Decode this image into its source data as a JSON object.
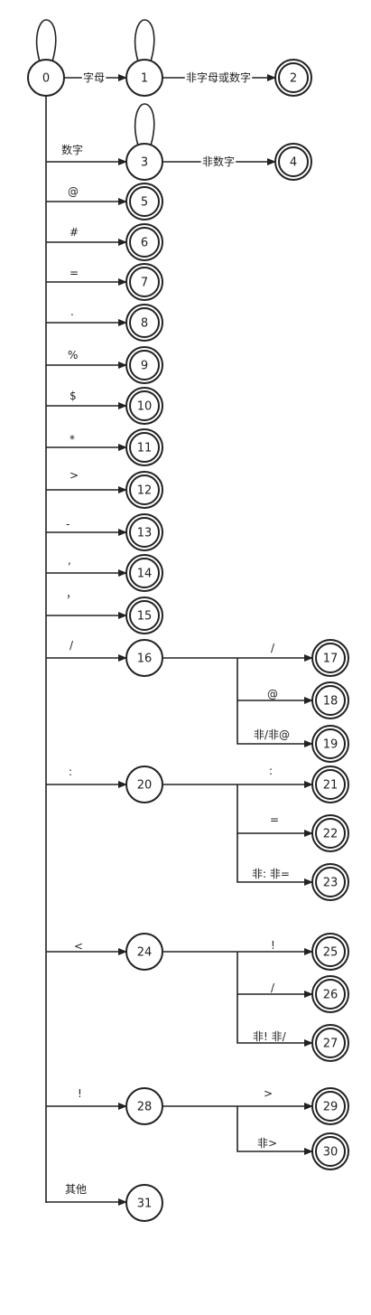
{
  "diagram": {
    "states": [
      {
        "id": "0",
        "label": "0",
        "accepting": false
      },
      {
        "id": "1",
        "label": "1",
        "accepting": false
      },
      {
        "id": "2",
        "label": "2",
        "accepting": true
      },
      {
        "id": "3",
        "label": "3",
        "accepting": false
      },
      {
        "id": "4",
        "label": "4",
        "accepting": true
      },
      {
        "id": "5",
        "label": "5",
        "accepting": true
      },
      {
        "id": "6",
        "label": "6",
        "accepting": true
      },
      {
        "id": "7",
        "label": "7",
        "accepting": true
      },
      {
        "id": "8",
        "label": "8",
        "accepting": true
      },
      {
        "id": "9",
        "label": "9",
        "accepting": true
      },
      {
        "id": "10",
        "label": "10",
        "accepting": true
      },
      {
        "id": "11",
        "label": "11",
        "accepting": true
      },
      {
        "id": "12",
        "label": "12",
        "accepting": true
      },
      {
        "id": "13",
        "label": "13",
        "accepting": true
      },
      {
        "id": "14",
        "label": "14",
        "accepting": true
      },
      {
        "id": "15",
        "label": "15",
        "accepting": true
      },
      {
        "id": "16",
        "label": "16",
        "accepting": false
      },
      {
        "id": "17",
        "label": "17",
        "accepting": true
      },
      {
        "id": "18",
        "label": "18",
        "accepting": true
      },
      {
        "id": "19",
        "label": "19",
        "accepting": true
      },
      {
        "id": "20",
        "label": "20",
        "accepting": false
      },
      {
        "id": "21",
        "label": "21",
        "accepting": true
      },
      {
        "id": "22",
        "label": "22",
        "accepting": true
      },
      {
        "id": "23",
        "label": "23",
        "accepting": true
      },
      {
        "id": "24",
        "label": "24",
        "accepting": false
      },
      {
        "id": "25",
        "label": "25",
        "accepting": true
      },
      {
        "id": "26",
        "label": "26",
        "accepting": true
      },
      {
        "id": "27",
        "label": "27",
        "accepting": true
      },
      {
        "id": "28",
        "label": "28",
        "accepting": false
      },
      {
        "id": "29",
        "label": "29",
        "accepting": true
      },
      {
        "id": "30",
        "label": "30",
        "accepting": true
      },
      {
        "id": "31",
        "label": "31",
        "accepting": false
      }
    ],
    "edges": [
      {
        "from": "0",
        "to": "1",
        "label": "字母"
      },
      {
        "from": "1",
        "to": "2",
        "label": "非字母或数字"
      },
      {
        "from": "0",
        "to": "3",
        "label": "数字"
      },
      {
        "from": "3",
        "to": "4",
        "label": "非数字"
      },
      {
        "from": "0",
        "to": "5",
        "label": "@"
      },
      {
        "from": "0",
        "to": "6",
        "label": "#"
      },
      {
        "from": "0",
        "to": "7",
        "label": "="
      },
      {
        "from": "0",
        "to": "8",
        "label": "."
      },
      {
        "from": "0",
        "to": "9",
        "label": "%"
      },
      {
        "from": "0",
        "to": "10",
        "label": "$"
      },
      {
        "from": "0",
        "to": "11",
        "label": "*"
      },
      {
        "from": "0",
        "to": "12",
        "label": ">"
      },
      {
        "from": "0",
        "to": "13",
        "label": "-"
      },
      {
        "from": "0",
        "to": "14",
        "label": ","
      },
      {
        "from": "0",
        "to": "15",
        "label": "，"
      },
      {
        "from": "0",
        "to": "16",
        "label": "/"
      },
      {
        "from": "16",
        "to": "17",
        "label": "/"
      },
      {
        "from": "16",
        "to": "18",
        "label": "@"
      },
      {
        "from": "16",
        "to": "19",
        "label": "非/非@"
      },
      {
        "from": "0",
        "to": "20",
        "label": ":"
      },
      {
        "from": "20",
        "to": "21",
        "label": ":"
      },
      {
        "from": "20",
        "to": "22",
        "label": "="
      },
      {
        "from": "20",
        "to": "23",
        "label": "非:  非="
      },
      {
        "from": "0",
        "to": "24",
        "label": "<"
      },
      {
        "from": "24",
        "to": "25",
        "label": "!"
      },
      {
        "from": "24",
        "to": "26",
        "label": "/"
      },
      {
        "from": "24",
        "to": "27",
        "label": "非!  非/"
      },
      {
        "from": "0",
        "to": "28",
        "label": "!"
      },
      {
        "from": "28",
        "to": "29",
        "label": ">"
      },
      {
        "from": "28",
        "to": "30",
        "label": "非>"
      },
      {
        "from": "0",
        "to": "31",
        "label": "其他"
      }
    ]
  }
}
